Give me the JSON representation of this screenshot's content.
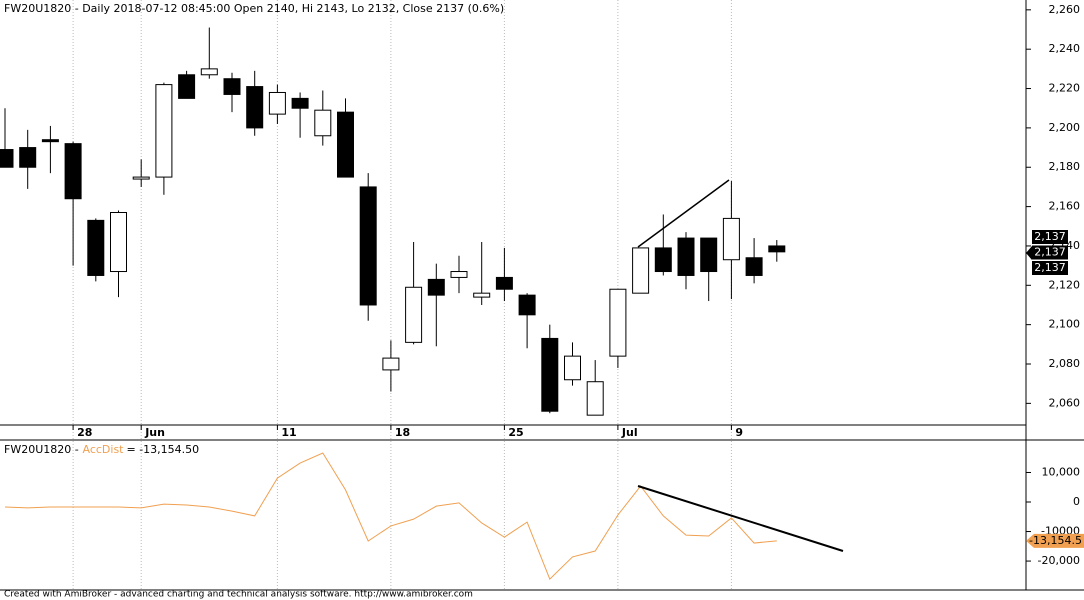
{
  "chart_data": [
    {
      "type": "candlestick",
      "title": "FW20U1820 - Daily 2018-07-12 08:45:00 Open 2140, Hi 2143, Lo 2132, Close 2137 (0.6%)",
      "categories": [
        null,
        null,
        null,
        "28",
        null,
        null,
        "Jun",
        null,
        null,
        null,
        null,
        null,
        "11",
        null,
        null,
        null,
        null,
        "18",
        null,
        null,
        null,
        null,
        "25",
        null,
        null,
        null,
        null,
        "Jul",
        null,
        null,
        null,
        null,
        "9",
        null,
        null
      ],
      "open": [
        2189,
        2190,
        2194,
        2192,
        2153,
        2127,
        2174,
        2175,
        2227,
        2227,
        2225,
        2221,
        2207,
        2215,
        2196,
        2208,
        2170,
        2077,
        2091,
        2123,
        2124,
        2114,
        2124,
        2115,
        2093,
        2072,
        2054,
        2084,
        2116,
        2139,
        2144,
        2144,
        2133,
        2134,
        2140
      ],
      "high": [
        2210,
        2199,
        2201,
        2193,
        2154,
        2158,
        2184,
        2223,
        2229,
        2251,
        2228,
        2229,
        2222,
        2218,
        2219,
        2215,
        2177,
        2092,
        2142,
        2131,
        2135,
        2142,
        2139,
        2116,
        2100,
        2091,
        2082,
        2118,
        2139,
        2156,
        2147,
        2144,
        2173,
        2144,
        2143
      ],
      "low": [
        2180,
        2169,
        2177,
        2130,
        2122,
        2114,
        2170,
        2166,
        2215,
        2225,
        2208,
        2196,
        2202,
        2195,
        2191,
        2175,
        2102,
        2066,
        2090,
        2089,
        2116,
        2110,
        2112,
        2088,
        2055,
        2069,
        2054,
        2078,
        2116,
        2125,
        2118,
        2112,
        2113,
        2121,
        2132
      ],
      "close": [
        2180,
        2180,
        2193,
        2164,
        2125,
        2157,
        2175,
        2222,
        2215,
        2230,
        2217,
        2200,
        2218,
        2210,
        2209,
        2175,
        2110,
        2083,
        2119,
        2115,
        2127,
        2116,
        2118,
        2105,
        2056,
        2084,
        2071,
        2118,
        2139,
        2127,
        2125,
        2127,
        2154,
        2125,
        2137
      ],
      "up_color": "#ffffff",
      "down_color": "#000000",
      "ylim": [
        2049,
        2265
      ],
      "yticks": [
        {
          "value": 2060,
          "label": "2,060"
        },
        {
          "value": 2080,
          "label": "2,080"
        },
        {
          "value": 2100,
          "label": "2,100"
        },
        {
          "value": 2120,
          "label": "2,120"
        },
        {
          "value": 2140,
          "label": "2,140"
        },
        {
          "value": 2160,
          "label": "2,160"
        },
        {
          "value": 2180,
          "label": "2,180"
        },
        {
          "value": 2200,
          "label": "2,200"
        },
        {
          "value": 2220,
          "label": "2,220"
        },
        {
          "value": 2240,
          "label": "2,240"
        },
        {
          "value": 2260,
          "label": "2,260"
        }
      ],
      "price_flags": [
        "2,137",
        "2,137",
        "2,137"
      ],
      "grid": true
    },
    {
      "type": "line",
      "label": "FW20U1820 -",
      "series": [
        {
          "name": "AccDist",
          "color": "#f0a050",
          "values": [
            -1700,
            -2000,
            -1700,
            -1700,
            -1700,
            -1700,
            -2000,
            -700,
            -1000,
            -1700,
            -3100,
            -4700,
            8100,
            13200,
            16600,
            4100,
            -13200,
            -8100,
            -5800,
            -1400,
            -300,
            -7100,
            -11900,
            -6800,
            -26100,
            -18600,
            -16600,
            -4400,
            5400,
            -4700,
            -11200,
            -11500,
            -5400,
            -13900,
            -13154.5
          ],
          "last_value_label": "= -13,154.50",
          "flag_label": "-13,154.5"
        }
      ],
      "ylim": [
        -29800,
        21000
      ],
      "yticks": [
        {
          "value": -20000,
          "label": "-20,000"
        },
        {
          "value": -10000,
          "label": "-10000"
        },
        0,
        {
          "value": 10000,
          "label": "10,000"
        }
      ]
    }
  ],
  "footer": "Created with AmiBroker - advanced charting and technical analysis software. http://www.amibroker.com"
}
